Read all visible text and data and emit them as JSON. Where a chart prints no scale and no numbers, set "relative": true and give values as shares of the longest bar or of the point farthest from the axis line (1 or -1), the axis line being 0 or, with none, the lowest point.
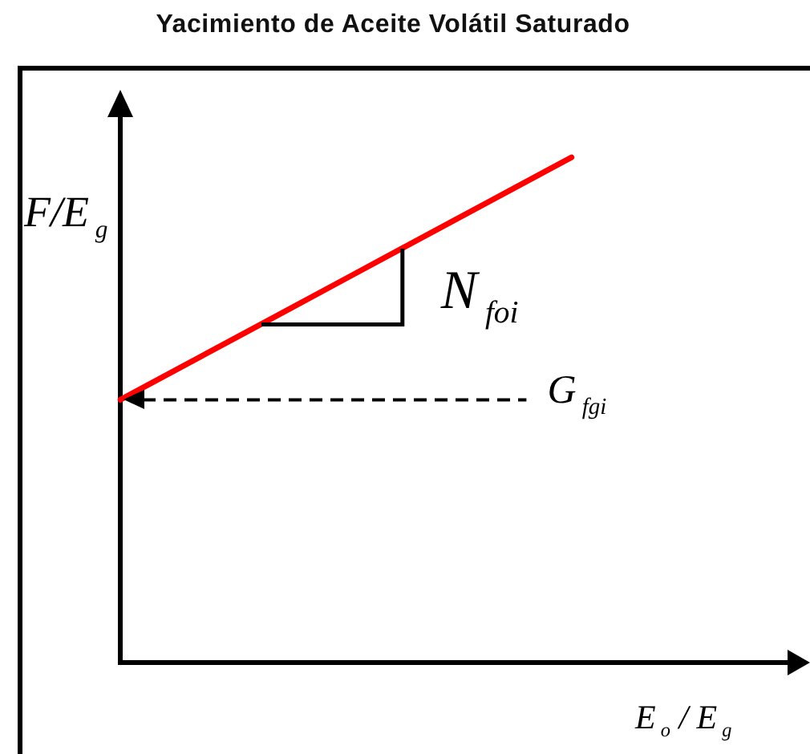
{
  "chart_data": {
    "type": "line",
    "title": "Yacimiento de Aceite Volátil Saturado",
    "xlabel": "E$_{o}$ / E$_{g}$",
    "ylabel": "F/E$_{g}$",
    "categories": [
      null,
      null,
      null,
      null,
      null,
      null,
      null,
      null,
      null,
      null,
      null,
      null,
      null
    ],
    "values": [
      0.52,
      0.58,
      0.64,
      0.7,
      0.76,
      0.82,
      0.88,
      0.94,
      1.0,
      null,
      null,
      null,
      null
    ],
    "color": "#ff0000",
    "relative": true,
    "marker": "none",
    "tick_labels": false,
    "ref_lines": [
      {
        "axis": "y",
        "value": 0.52,
        "label": "G$_{fgi}$",
        "color": "#000000",
        "line_style": "dashed"
      }
    ],
    "annotations": [
      "N$_{foi}$"
    ]
  }
}
